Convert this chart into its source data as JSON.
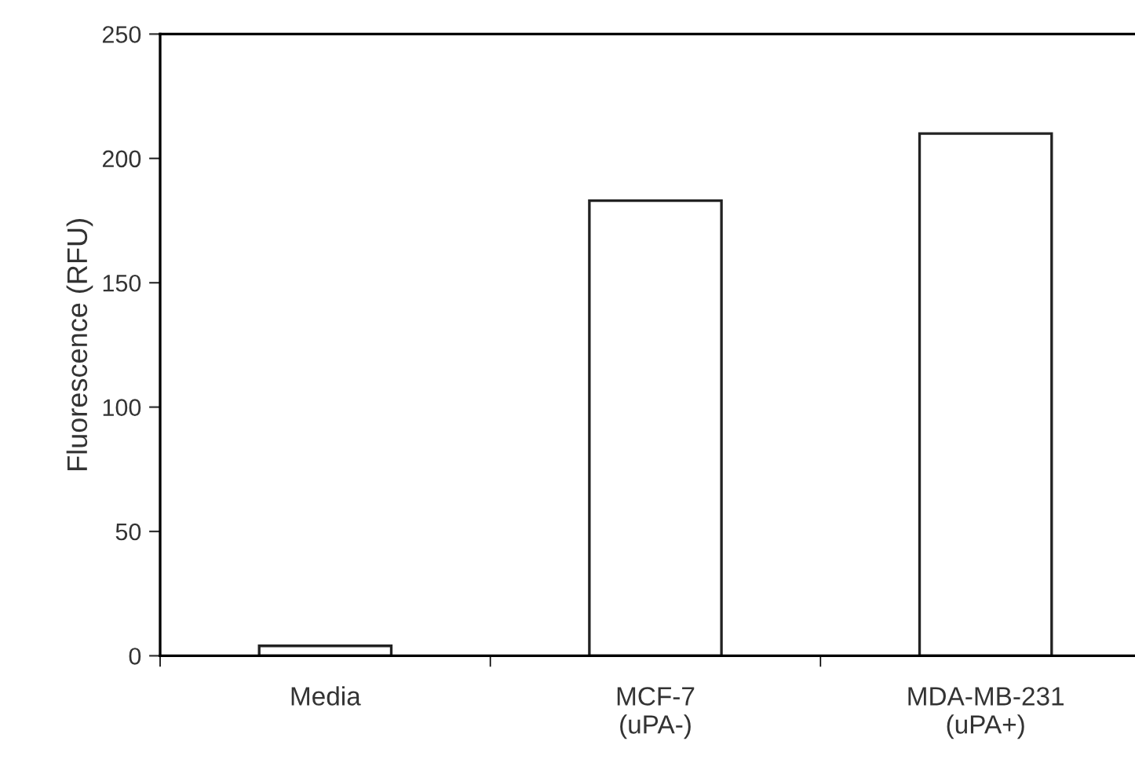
{
  "chart_data": {
    "type": "bar",
    "ylabel": "Fluorescence (RFU)",
    "categories": [
      "Media",
      "MCF-7\n(uPA-)",
      "MDA-MB-231\n(uPA+)"
    ],
    "values": [
      4,
      183,
      210
    ],
    "color": "#ffffff",
    "ylim": [
      0,
      250
    ],
    "yticks": [
      0,
      50,
      100,
      150,
      200,
      250
    ],
    "grid": false
  }
}
